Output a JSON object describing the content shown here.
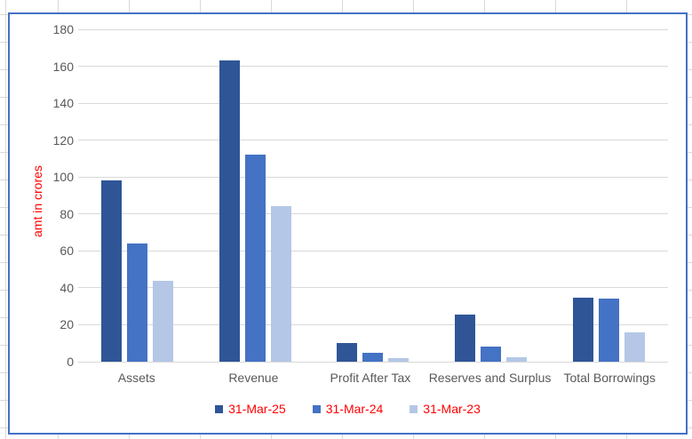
{
  "sheet": {
    "cell_gridline_color": "#d9d9d9"
  },
  "chart": {
    "border_color": "#4472c4",
    "background": "#ffffff",
    "plot_gridline_color": "#d9d9d9",
    "axis_text_color": "#595959",
    "ylabel_color": "#ff0000",
    "legend_text_color": "#ff0000"
  },
  "chart_data": {
    "type": "bar",
    "title": "",
    "xlabel": "",
    "ylabel": "amt in crores",
    "categories": [
      "Assets",
      "Revenue",
      "Profit After Tax",
      "Reserves and Surplus",
      "Total Borrowings"
    ],
    "series": [
      {
        "name": "31-Mar-25",
        "color": "#2f5597",
        "values": [
          98,
          163,
          10,
          25.5,
          34.5
        ]
      },
      {
        "name": "31-Mar-24",
        "color": "#4472c4",
        "values": [
          64,
          112,
          5,
          8,
          34
        ]
      },
      {
        "name": "31-Mar-23",
        "color": "#b4c7e7",
        "values": [
          44,
          84,
          2,
          2.5,
          16
        ]
      }
    ],
    "ylim": [
      0,
      180
    ],
    "ytick_step": 20,
    "yticks": [
      0,
      20,
      40,
      60,
      80,
      100,
      120,
      140,
      160,
      180
    ],
    "grid": true,
    "legend_position": "bottom"
  }
}
